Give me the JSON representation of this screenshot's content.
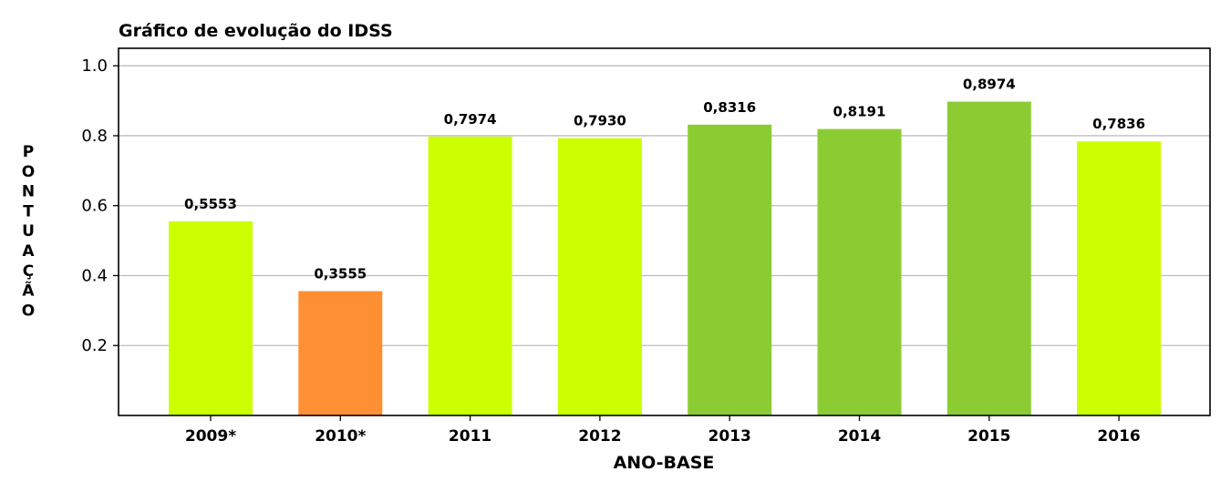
{
  "chart_data": {
    "type": "bar",
    "title": "Gráfico de evolução do IDSS",
    "xlabel": "ANO-BASE",
    "ylabel": "PONTUAÇÃO",
    "categories": [
      "2009*",
      "2010*",
      "2011",
      "2012",
      "2013",
      "2014",
      "2015",
      "2016"
    ],
    "values": [
      0.5553,
      0.3555,
      0.7974,
      0.793,
      0.8316,
      0.8191,
      0.8974,
      0.7836
    ],
    "value_labels": [
      "0,5553",
      "0,3555",
      "0,7974",
      "0,7930",
      "0,8316",
      "0,8191",
      "0,8974",
      "0,7836"
    ],
    "bar_colors": [
      "#ccff00",
      "#ff8f33",
      "#ccff00",
      "#ccff00",
      "#8ccc33",
      "#8ccc33",
      "#8ccc33",
      "#ccff00"
    ],
    "ylim": [
      0,
      1.05
    ],
    "yticks": [
      0.2,
      0.4,
      0.6,
      0.8,
      1.0
    ],
    "ytick_labels": [
      "0.2",
      "0.4",
      "0.6",
      "0.8",
      "1.0"
    ],
    "grid": "horizontal"
  }
}
